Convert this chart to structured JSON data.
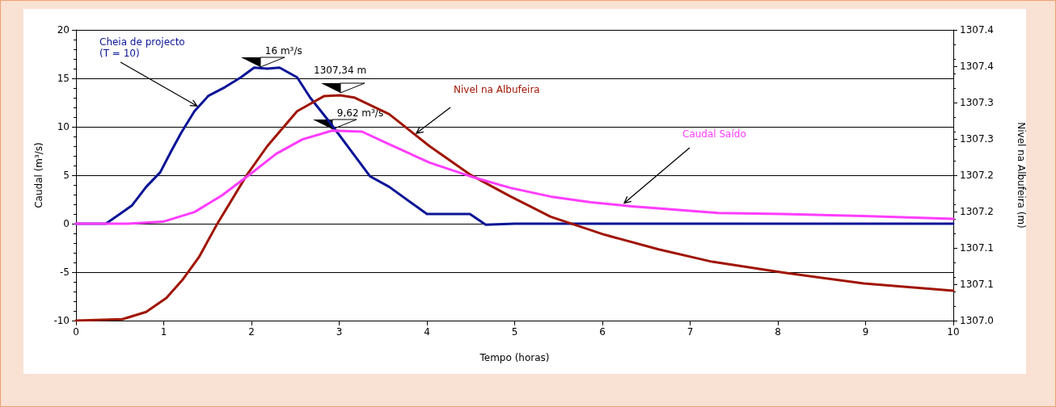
{
  "chart_data": {
    "type": "line",
    "xlabel": "Tempo (horas)",
    "ylabel": "Caudal (m³/s)",
    "y2label": "Nivel na Albufeira (m)",
    "xlim": [
      0,
      10
    ],
    "xticks": [
      0,
      1,
      2,
      3,
      4,
      5,
      6,
      7,
      8,
      9,
      10
    ],
    "ylim": [
      -10,
      20
    ],
    "yticks": [
      -10,
      -5,
      0,
      5,
      10,
      15,
      20
    ],
    "y2lim": [
      1307.0,
      1307.4
    ],
    "y2ticks": [
      {
        "value": 1307.0,
        "label": "1307.0"
      },
      {
        "value": 1307.05,
        "label": "1307.1"
      },
      {
        "value": 1307.1,
        "label": "1307.1"
      },
      {
        "value": 1307.15,
        "label": "1307.2"
      },
      {
        "value": 1307.2,
        "label": "1307.2"
      },
      {
        "value": 1307.25,
        "label": "1307.3"
      },
      {
        "value": 1307.3,
        "label": "1307.3"
      },
      {
        "value": 1307.35,
        "label": "1307.4"
      },
      {
        "value": 1307.4,
        "label": "1307.4"
      }
    ],
    "grid": "y",
    "legend": false,
    "marker": "none",
    "line_style": "solid",
    "annotations": [
      {
        "text": "16 m³/s",
        "x": 2.1,
        "y": 16
      },
      {
        "text": "9,62 m³/s",
        "x": 2.92,
        "y": 9.62
      },
      "1307,34 m"
    ],
    "series": [
      {
        "name": "Cheia de projecto\n(T = 10)",
        "color": "#0a1496",
        "x": [
          0,
          0.34,
          0.5,
          0.64,
          0.8,
          0.96,
          1.08,
          1.2,
          1.35,
          1.51,
          1.7,
          1.88,
          2.03,
          2.18,
          2.32,
          2.52,
          2.67,
          2.89,
          3.17,
          3.35,
          3.57,
          4.0,
          4.49,
          4.67,
          5,
          6,
          7,
          8,
          9,
          10
        ],
        "values": [
          0,
          0,
          1.0,
          1.9,
          3.8,
          5.3,
          7.4,
          9.4,
          11.6,
          13.2,
          14.1,
          15.1,
          16.1,
          16.0,
          16.1,
          15.1,
          13.0,
          10.5,
          7.1,
          4.9,
          3.8,
          1.0,
          1.0,
          -0.1,
          0,
          0,
          0,
          0,
          0,
          0
        ]
      },
      {
        "name": "Nivel na Albufeira",
        "color": "#a01400",
        "axis": "y2",
        "x": [
          0,
          0.53,
          0.8,
          1.03,
          1.22,
          1.4,
          1.6,
          1.94,
          2.18,
          2.52,
          2.83,
          3.01,
          3.17,
          3.57,
          4.03,
          4.49,
          4.95,
          5.41,
          6.03,
          6.64,
          7.25,
          8.06,
          8.98,
          10
        ],
        "values": [
          1307.0,
          1307.002,
          1307.012,
          1307.031,
          1307.057,
          1307.087,
          1307.131,
          1307.199,
          1307.24,
          1307.288,
          1307.309,
          1307.31,
          1307.307,
          1307.284,
          1307.24,
          1307.201,
          1307.171,
          1307.143,
          1307.118,
          1307.098,
          1307.081,
          1307.066,
          1307.051,
          1307.041
        ]
      },
      {
        "name": "Caudal Saído",
        "color": "#ff3cff",
        "x": [
          0,
          0.59,
          0.99,
          1.35,
          1.66,
          1.97,
          2.28,
          2.58,
          2.92,
          3.26,
          3.57,
          4.03,
          4.49,
          4.95,
          5.41,
          5.87,
          6.33,
          7.32,
          8.06,
          8.98,
          10
        ],
        "values": [
          0,
          0,
          0.2,
          1.2,
          2.9,
          5.0,
          7.2,
          8.7,
          9.6,
          9.5,
          8.2,
          6.3,
          4.9,
          3.7,
          2.8,
          2.2,
          1.8,
          1.1,
          1.0,
          0.8,
          0.5
        ]
      }
    ]
  }
}
